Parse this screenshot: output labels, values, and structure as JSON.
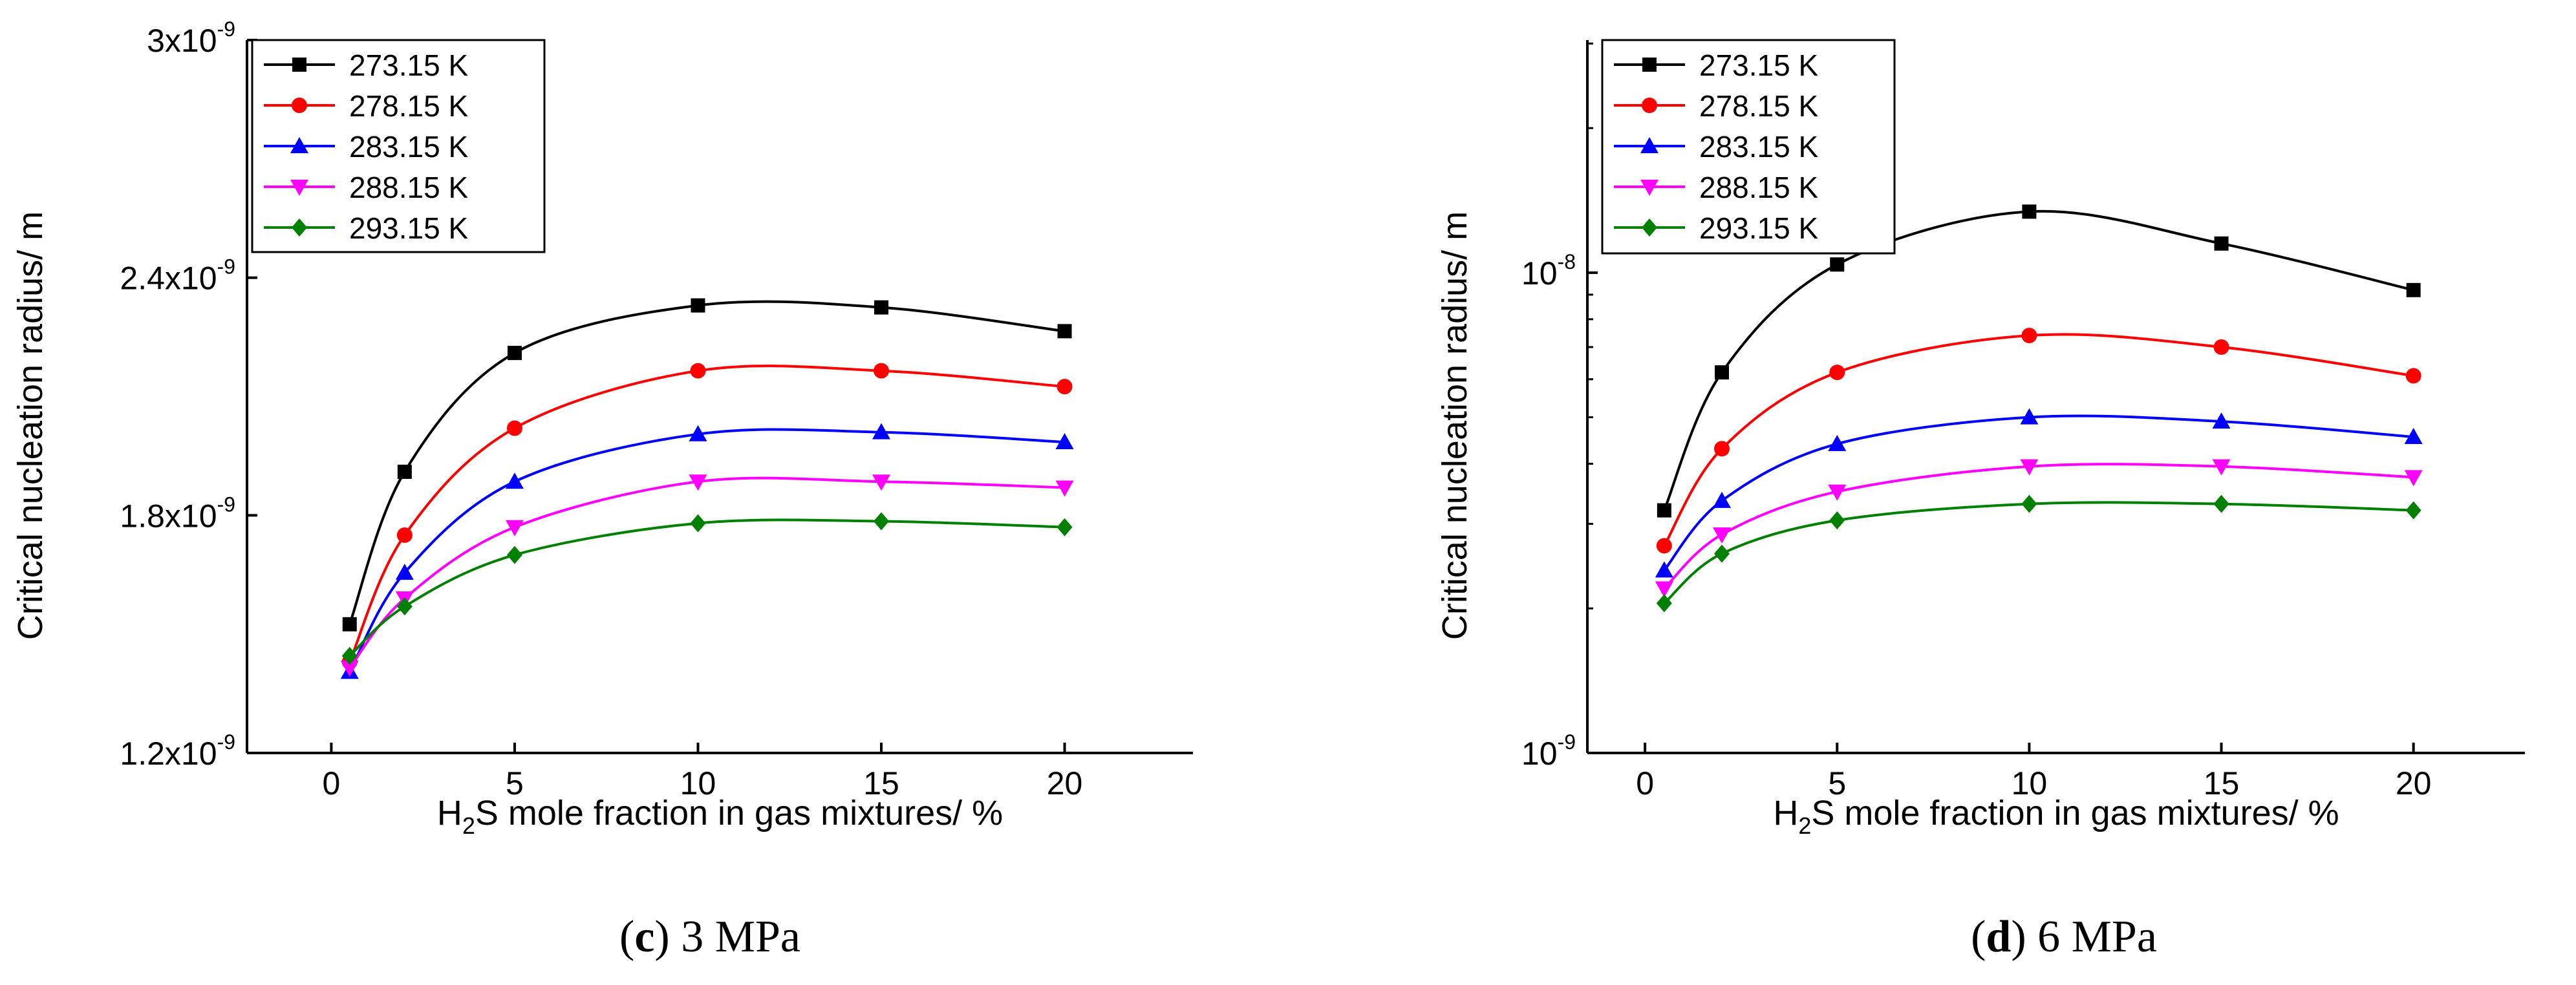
{
  "chart_data": [
    {
      "type": "line",
      "panel_label": "c",
      "caption": "3 MPa",
      "xlabel_prefix": "H",
      "xlabel_sub": "2",
      "xlabel_suffix": "S mole fraction in gas mixtures/ %",
      "ylabel": "Critical nucleation radius/ m",
      "y_scale": "linear",
      "xlim": [
        -2.3,
        23.5
      ],
      "ylim": [
        1.2e-09,
        3e-09
      ],
      "x_ticks": [
        0,
        5,
        10,
        15,
        20
      ],
      "y_ticks": [
        {
          "value": 1.2e-09,
          "mantissa": "1.2x10",
          "exp": "-9"
        },
        {
          "value": 1.8e-09,
          "mantissa": "1.8x10",
          "exp": "-9"
        },
        {
          "value": 2.4e-09,
          "mantissa": "2.4x10",
          "exp": "-9"
        },
        {
          "value": 3e-09,
          "mantissa": "3x10",
          "exp": "-9"
        }
      ],
      "legend_position": "top-left",
      "x": [
        0.5,
        2,
        5,
        10,
        15,
        20
      ],
      "series": [
        {
          "name": "273.15 K",
          "color": "#000000",
          "marker": "square",
          "values": [
            1.525e-09,
            1.91e-09,
            2.21e-09,
            2.33e-09,
            2.325e-09,
            2.265e-09
          ]
        },
        {
          "name": "278.15 K",
          "color": "#ff0000",
          "marker": "circle",
          "values": [
            1.43e-09,
            1.75e-09,
            2.02e-09,
            2.165e-09,
            2.165e-09,
            2.125e-09
          ]
        },
        {
          "name": "283.15 K",
          "color": "#0000ff",
          "marker": "triangle-up",
          "values": [
            1.405e-09,
            1.655e-09,
            1.885e-09,
            2.005e-09,
            2.01e-09,
            1.985e-09
          ]
        },
        {
          "name": "288.15 K",
          "color": "#ff00ff",
          "marker": "triangle-down",
          "values": [
            1.415e-09,
            1.59e-09,
            1.77e-09,
            1.885e-09,
            1.885e-09,
            1.87e-09
          ]
        },
        {
          "name": "293.15 K",
          "color": "#008000",
          "marker": "diamond",
          "values": [
            1.445e-09,
            1.57e-09,
            1.7e-09,
            1.78e-09,
            1.785e-09,
            1.77e-09
          ]
        }
      ]
    },
    {
      "type": "line",
      "panel_label": "d",
      "caption": "6 MPa",
      "xlabel_prefix": "H",
      "xlabel_sub": "2",
      "xlabel_suffix": "S mole fraction in gas mixtures/ %",
      "ylabel": "Critical nucleation radius/ m",
      "y_scale": "log",
      "xlim": [
        -1.5,
        22.9
      ],
      "ylim": [
        1e-09,
        3.05e-08
      ],
      "x_ticks": [
        0,
        5,
        10,
        15,
        20
      ],
      "y_ticks": [
        {
          "value": 1e-09,
          "mantissa": "10",
          "exp": "-9"
        },
        {
          "value": 1e-08,
          "mantissa": "10",
          "exp": "-8"
        }
      ],
      "legend_position": "top-left",
      "x": [
        0.5,
        2,
        5,
        10,
        15,
        20
      ],
      "series": [
        {
          "name": "273.15 K",
          "color": "#000000",
          "marker": "square",
          "values": [
            3.2e-09,
            6.2e-09,
            1.04e-08,
            1.34e-08,
            1.15e-08,
            9.2e-09
          ]
        },
        {
          "name": "278.15 K",
          "color": "#ff0000",
          "marker": "circle",
          "values": [
            2.7e-09,
            4.3e-09,
            6.2e-09,
            7.4e-09,
            7e-09,
            6.1e-09
          ]
        },
        {
          "name": "283.15 K",
          "color": "#0000ff",
          "marker": "triangle-up",
          "values": [
            2.4e-09,
            3.35e-09,
            4.4e-09,
            5e-09,
            4.9e-09,
            4.55e-09
          ]
        },
        {
          "name": "288.15 K",
          "color": "#ff00ff",
          "marker": "triangle-down",
          "values": [
            2.2e-09,
            2.85e-09,
            3.5e-09,
            3.95e-09,
            3.95e-09,
            3.75e-09
          ]
        },
        {
          "name": "293.15 K",
          "color": "#008000",
          "marker": "diamond",
          "values": [
            2.05e-09,
            2.6e-09,
            3.05e-09,
            3.3e-09,
            3.3e-09,
            3.2e-09
          ]
        }
      ]
    }
  ]
}
